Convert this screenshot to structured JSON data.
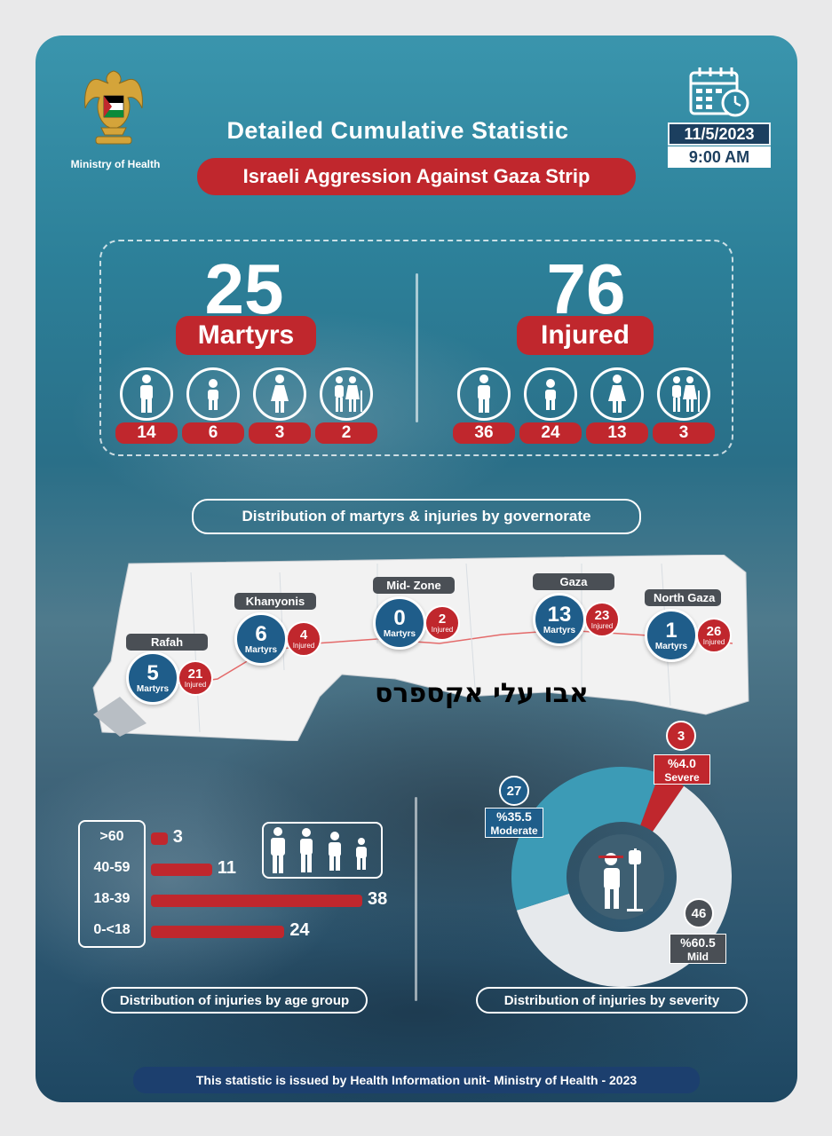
{
  "header": {
    "ministry_label": "Ministry of Health",
    "title": "Detailed Cumulative Statistic",
    "subtitle": "Israeli Aggression Against Gaza Strip",
    "date": "11/5/2023",
    "time": "9:00 AM"
  },
  "totals": {
    "martyrs": {
      "count": "25",
      "label": "Martyrs",
      "breakdown": [
        {
          "icon": "man-icon",
          "value": "14"
        },
        {
          "icon": "child-icon",
          "value": "6"
        },
        {
          "icon": "woman-icon",
          "value": "3"
        },
        {
          "icon": "elderly-icon",
          "value": "2"
        }
      ]
    },
    "injured": {
      "count": "76",
      "label": "Injured",
      "breakdown": [
        {
          "icon": "man-icon",
          "value": "36"
        },
        {
          "icon": "child-icon",
          "value": "24"
        },
        {
          "icon": "woman-icon",
          "value": "13"
        },
        {
          "icon": "elderly-icon",
          "value": "3"
        }
      ]
    }
  },
  "governorates": {
    "heading": "Distribution of martyrs & injuries by governorate",
    "martyrs_label": "Martyrs",
    "injured_label": "Injured",
    "items": [
      {
        "name": "Rafah",
        "martyrs": "5",
        "injured": "21"
      },
      {
        "name": "Khanyonis",
        "martyrs": "6",
        "injured": "4"
      },
      {
        "name": "Mid- Zone",
        "martyrs": "0",
        "injured": "2"
      },
      {
        "name": "Gaza",
        "martyrs": "13",
        "injured": "23"
      },
      {
        "name": "North Gaza",
        "martyrs": "1",
        "injured": "26"
      }
    ]
  },
  "watermark": "אבו עלי אקספרס",
  "age_groups": {
    "heading": "Distribution of injuries by age group",
    "rows": [
      {
        "label": ">60",
        "value": 3
      },
      {
        "label": "40-59",
        "value": 11
      },
      {
        "label": "18-39",
        "value": 38
      },
      {
        "label": "0-<18",
        "value": 24
      }
    ],
    "max": 38
  },
  "severity": {
    "heading": "Distribution of injuries by severity",
    "segments": [
      {
        "name": "Severe",
        "count": "3",
        "percent": "%4.0",
        "value": 4.0,
        "color": "#c0272d"
      },
      {
        "name": "Mild",
        "count": "46",
        "percent": "%60.5",
        "value": 60.5,
        "color": "#e6e9ec"
      },
      {
        "name": "Moderate",
        "count": "27",
        "percent": "%35.5",
        "value": 35.5,
        "color": "#3c9bb6"
      }
    ]
  },
  "footer": "This statistic is issued by Health Information unit- Ministry of Health - 2023"
}
